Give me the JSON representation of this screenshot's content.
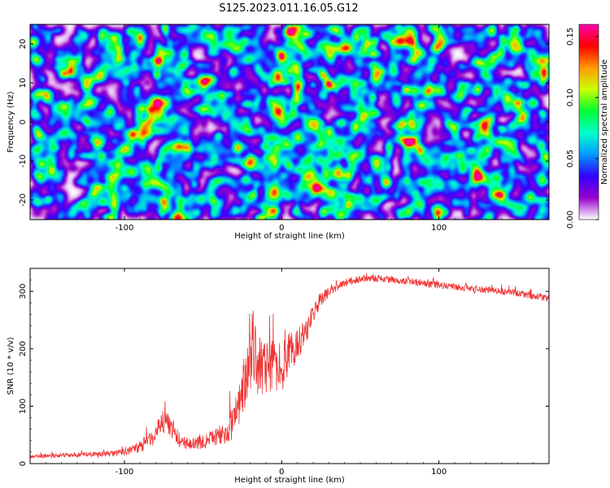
{
  "title": "S125.2023.011.16.05.G12",
  "chart_data": [
    {
      "type": "heatmap",
      "xlabel": "Height of straight line (km)",
      "ylabel": "Frequency (Hz)",
      "xlim": [
        -160,
        170
      ],
      "ylim": [
        -25,
        25
      ],
      "xticks": [
        -100,
        0,
        100
      ],
      "yticks": [
        -20,
        -10,
        0,
        10,
        20
      ],
      "colorbar": {
        "label": "Normalized spectral amplitude",
        "range": [
          0.0,
          0.16
        ],
        "ticks": [
          0.0,
          0.05,
          0.1,
          0.15
        ],
        "tick_labels": [
          "0.00",
          "0.05",
          "0.10",
          "0.15"
        ],
        "colormap": [
          "#ffffff",
          "#9900cc",
          "#3300ff",
          "#0099ff",
          "#00ffcc",
          "#00ff33",
          "#ccff00",
          "#ff9900",
          "#ff0000",
          "#ff00aa"
        ]
      },
      "background_value": 0.01,
      "typical_blob_value": 0.04,
      "hotspots": [
        {
          "x": -95,
          "y": -3,
          "value": 0.15
        },
        {
          "x": 26,
          "y": 12,
          "value": 0.14
        },
        {
          "x": 0,
          "y": 17,
          "value": 0.13
        },
        {
          "x": 30,
          "y": -2,
          "value": 0.13
        },
        {
          "x": 132,
          "y": 1,
          "value": 0.12
        },
        {
          "x": 95,
          "y": 16,
          "value": 0.12
        },
        {
          "x": -48,
          "y": 4,
          "value": 0.11
        },
        {
          "x": 67,
          "y": -15,
          "value": 0.11
        },
        {
          "x": -12,
          "y": -6,
          "value": 0.1
        },
        {
          "x": 137,
          "y": -5,
          "value": 0.1
        },
        {
          "x": 8,
          "y": 15,
          "value": 0.1
        },
        {
          "x": -80,
          "y": 1,
          "value": 0.09
        },
        {
          "x": 100,
          "y": 8,
          "value": 0.09
        },
        {
          "x": 50,
          "y": 5,
          "value": 0.08
        },
        {
          "x": -120,
          "y": 18,
          "value": 0.08
        }
      ]
    },
    {
      "type": "line",
      "xlabel": "Height of straight line (km)",
      "ylabel": "SNR (10 * v/v)",
      "xlim": [
        -160,
        170
      ],
      "ylim": [
        0,
        340
      ],
      "xticks": [
        -100,
        0,
        100
      ],
      "yticks": [
        0,
        100,
        200,
        300
      ],
      "series_color": "#ee3333",
      "x": [
        -160,
        -140,
        -120,
        -100,
        -90,
        -80,
        -74,
        -70,
        -64,
        -58,
        -50,
        -42,
        -36,
        -30,
        -26,
        -22,
        -20,
        -18,
        -14,
        -10,
        -5,
        0,
        5,
        10,
        15,
        20,
        25,
        30,
        40,
        50,
        60,
        80,
        100,
        120,
        140,
        160,
        170
      ],
      "values": [
        12,
        14,
        16,
        20,
        30,
        48,
        80,
        62,
        40,
        32,
        38,
        45,
        55,
        75,
        110,
        160,
        190,
        200,
        175,
        160,
        175,
        170,
        190,
        210,
        230,
        260,
        285,
        300,
        315,
        322,
        322,
        318,
        310,
        305,
        300,
        292,
        288
      ],
      "noise_amplitude": [
        5,
        6,
        7,
        9,
        15,
        25,
        35,
        30,
        18,
        15,
        18,
        22,
        30,
        45,
        60,
        80,
        95,
        100,
        85,
        70,
        70,
        65,
        55,
        45,
        35,
        25,
        18,
        12,
        10,
        9,
        9,
        9,
        9,
        9,
        9,
        9,
        9
      ]
    }
  ]
}
